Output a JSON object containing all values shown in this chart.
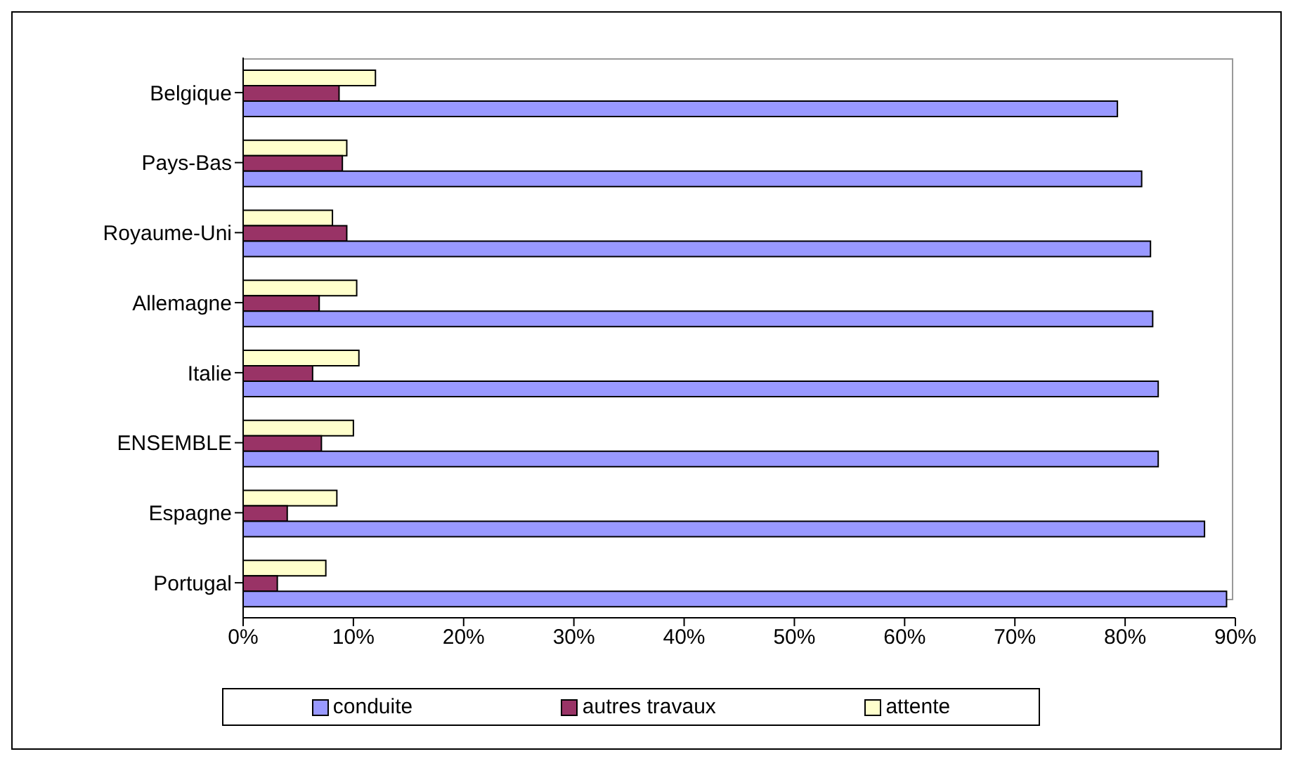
{
  "chart_data": {
    "type": "bar",
    "orientation": "horizontal",
    "categories": [
      "Belgique",
      "Pays-Bas",
      "Royaume-Uni",
      "Allemagne",
      "Italie",
      "ENSEMBLE",
      "Espagne",
      "Portugal"
    ],
    "series": [
      {
        "name": "conduite",
        "color": "#9999ff",
        "values": [
          79.3,
          81.5,
          82.3,
          82.5,
          83.0,
          83.0,
          87.2,
          89.2
        ]
      },
      {
        "name": "autres travaux",
        "color": "#993366",
        "values": [
          8.7,
          9.0,
          9.4,
          6.9,
          6.3,
          7.1,
          4.0,
          3.1
        ]
      },
      {
        "name": "attente",
        "color": "#ffffcc",
        "values": [
          12.0,
          9.4,
          8.1,
          10.3,
          10.5,
          10.0,
          8.5,
          7.5
        ]
      }
    ],
    "xlim": [
      0,
      90
    ],
    "xticks": [
      {
        "value": 0,
        "label": "0%"
      },
      {
        "value": 10,
        "label": "10%"
      },
      {
        "value": 20,
        "label": "20%"
      },
      {
        "value": 30,
        "label": "30%"
      },
      {
        "value": 40,
        "label": "40%"
      },
      {
        "value": 50,
        "label": "50%"
      },
      {
        "value": 60,
        "label": "60%"
      },
      {
        "value": 70,
        "label": "70%"
      },
      {
        "value": 80,
        "label": "80%"
      },
      {
        "value": 90,
        "label": "90%"
      }
    ],
    "grid": false,
    "legend": "bottom"
  }
}
